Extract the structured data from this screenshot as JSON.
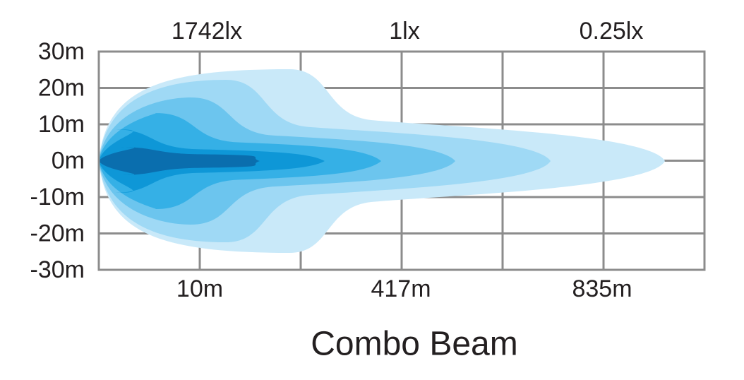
{
  "top_labels": [
    "1742lx",
    "1lx",
    "0.25lx"
  ],
  "y_labels": [
    "30m",
    "20m",
    "10m",
    "0m",
    "-10m",
    "-20m",
    "-30m"
  ],
  "bottom_labels": [
    "10m",
    "417m",
    "835m"
  ],
  "title": "Combo Beam"
}
